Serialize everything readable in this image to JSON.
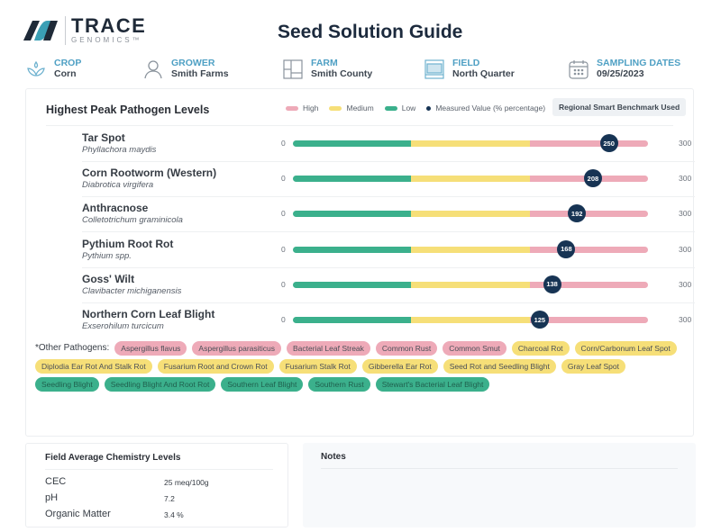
{
  "brand": {
    "name": "TRACE",
    "sub": "GENOMICS™"
  },
  "header": {
    "title": "Seed Solution Guide"
  },
  "meta": [
    {
      "label": "CROP",
      "value": "Corn",
      "icon": "sprout-icon"
    },
    {
      "label": "GROWER",
      "value": "Smith Farms",
      "icon": "person-icon"
    },
    {
      "label": "FARM",
      "value": "Smith County",
      "icon": "farm-grid-icon"
    },
    {
      "label": "FIELD",
      "value": "North Quarter",
      "icon": "field-map-icon"
    },
    {
      "label": "SAMPLING DATES",
      "value": "09/25/2023",
      "icon": "calendar-icon"
    }
  ],
  "colors": {
    "high": "#eeaab8",
    "medium": "#f6df78",
    "low": "#3bb08c",
    "marker": "#173454",
    "accent": "#4fa0c4"
  },
  "pathogens": {
    "title": "Highest Peak Pathogen Levels",
    "legend": {
      "high": "High",
      "medium": "Medium",
      "low": "Low",
      "measured": "Measured Value (% percentage)"
    },
    "benchmark": "Regional Smart Benchmark Used",
    "min_label": "0",
    "max_label": "300",
    "rows": [
      {
        "name": "Tar Spot",
        "scientific": "Phyllachora maydis",
        "value": "250",
        "pos": 0.89
      },
      {
        "name": "Corn Rootworm (Western)",
        "scientific": "Diabrotica virgifera",
        "value": "208",
        "pos": 0.845
      },
      {
        "name": "Anthracnose",
        "scientific": "Colletotrichum graminicola",
        "value": "192",
        "pos": 0.8
      },
      {
        "name": "Pythium Root Rot",
        "scientific": "Pythium spp.",
        "value": "168",
        "pos": 0.77
      },
      {
        "name": "Goss' Wilt",
        "scientific": "Clavibacter michiganensis",
        "value": "138",
        "pos": 0.73
      },
      {
        "name": "Northern Corn Leaf Blight",
        "scientific": "Exserohilum turcicum",
        "value": "125",
        "pos": 0.695
      }
    ]
  },
  "others": {
    "label": "*Other Pathogens:",
    "tags": [
      {
        "label": "Aspergillus flavus",
        "level": "high"
      },
      {
        "label": "Aspergillus parasiticus",
        "level": "high"
      },
      {
        "label": "Bacterial Leaf Streak",
        "level": "high"
      },
      {
        "label": "Common Rust",
        "level": "high"
      },
      {
        "label": "Common Smut",
        "level": "high"
      },
      {
        "label": "Charcoal Rot",
        "level": "medium"
      },
      {
        "label": "Corn/Carbonum Leaf Spot",
        "level": "medium"
      },
      {
        "label": "Diplodia Ear Rot And Stalk Rot",
        "level": "medium"
      },
      {
        "label": "Fusarium Root and Crown Rot",
        "level": "medium"
      },
      {
        "label": "Fusarium Stalk Rot",
        "level": "medium"
      },
      {
        "label": "Gibberella Ear Rot",
        "level": "medium"
      },
      {
        "label": "Seed Rot and Seedling Blight",
        "level": "medium"
      },
      {
        "label": "Gray Leaf Spot",
        "level": "medium"
      },
      {
        "label": "Seedling Blight",
        "level": "low"
      },
      {
        "label": "Seedling Blight And Root Rot",
        "level": "low"
      },
      {
        "label": "Southern Leaf Blight",
        "level": "low"
      },
      {
        "label": "Southern Rust",
        "level": "low"
      },
      {
        "label": "Stewart's Bacterial Leaf Blight",
        "level": "low"
      }
    ]
  },
  "chemistry": {
    "title": "Field Average Chemistry Levels",
    "rows": [
      {
        "label": "CEC",
        "value": "25 meq/100g"
      },
      {
        "label": "pH",
        "value": "7.2"
      },
      {
        "label": "Organic Matter",
        "value": "3.4 %"
      }
    ]
  },
  "notes": {
    "title": "Notes"
  }
}
